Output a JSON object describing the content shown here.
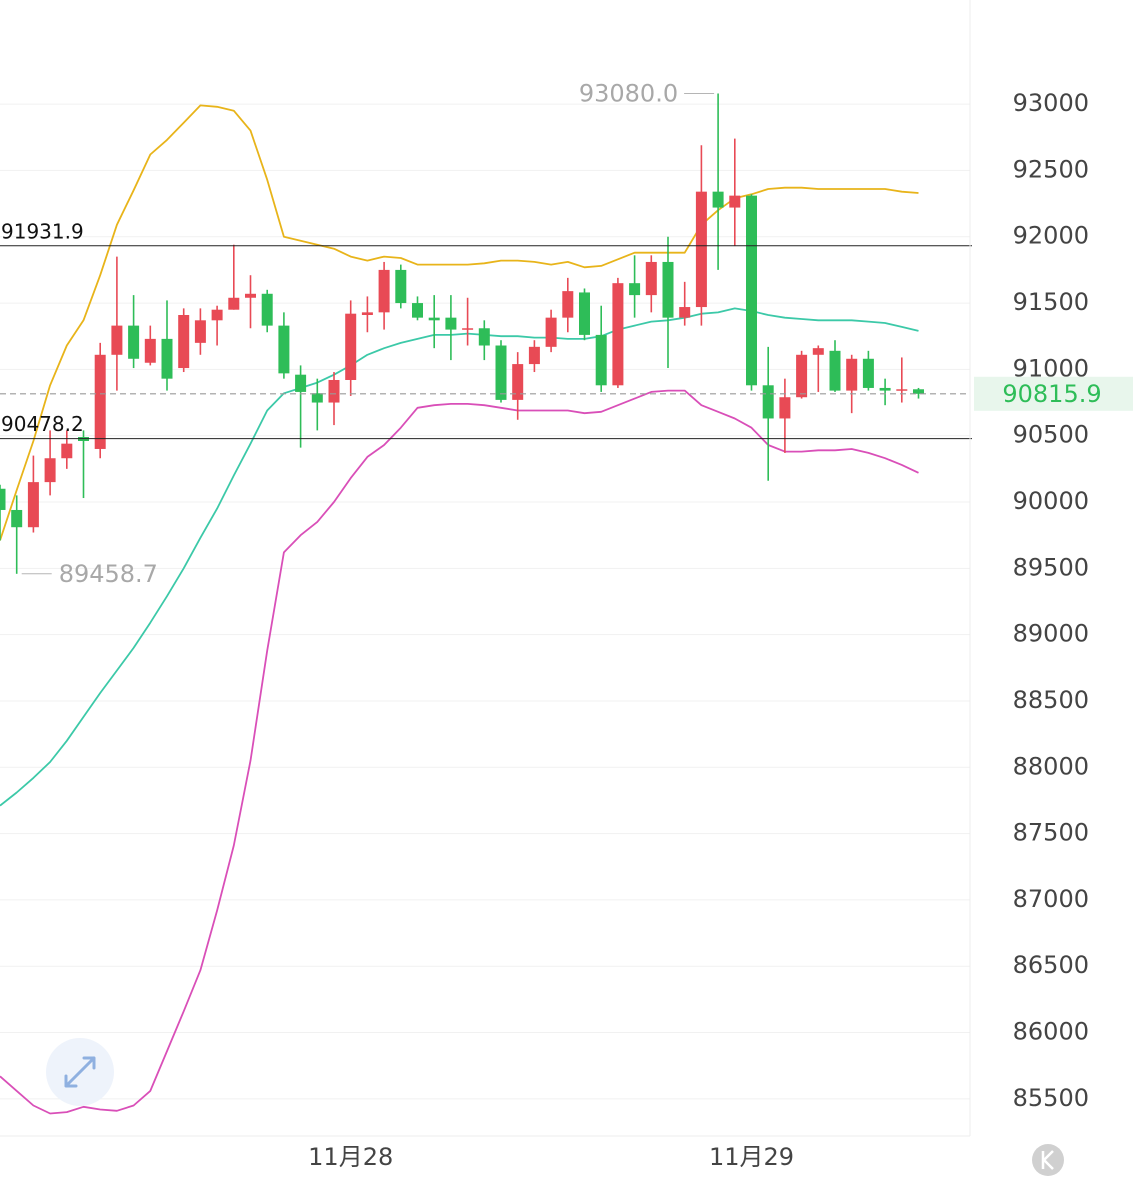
{
  "chart_data": {
    "type": "candlestick",
    "categories": [
      null,
      null,
      null,
      null,
      null,
      null,
      null,
      null,
      null,
      null,
      null,
      null,
      null,
      null,
      null,
      null,
      null,
      null,
      null,
      null,
      null,
      "11月28",
      null,
      null,
      null,
      null,
      null,
      null,
      null,
      null,
      null,
      null,
      null,
      null,
      null,
      null,
      null,
      null,
      null,
      null,
      null,
      null,
      null,
      null,
      null,
      "11月29",
      null,
      null,
      null,
      null,
      null,
      null,
      null,
      null,
      null,
      null
    ],
    "open": [
      90100,
      89940,
      89810,
      90150,
      90330,
      90490,
      90400,
      91110,
      91330,
      91050,
      91230,
      91010,
      91200,
      91370,
      91450,
      91540,
      91570,
      91330,
      90960,
      90820,
      90750,
      90920,
      91410,
      91430,
      91750,
      91500,
      91390,
      91390,
      91300,
      91310,
      91180,
      90770,
      91040,
      91170,
      91390,
      91580,
      91260,
      90880,
      91650,
      91560,
      91810,
      91390,
      91470,
      92340,
      92220,
      92310,
      90880,
      90630,
      90790,
      91110,
      91140,
      90840,
      91080,
      90860,
      90840,
      90850
    ],
    "high": [
      90130,
      90050,
      90350,
      90540,
      90540,
      90540,
      91200,
      91850,
      91560,
      91330,
      91520,
      91460,
      91460,
      91480,
      91940,
      91710,
      91600,
      91430,
      91030,
      90930,
      90980,
      91520,
      91550,
      91810,
      91790,
      91550,
      91560,
      91560,
      91540,
      91370,
      91220,
      91130,
      91220,
      91450,
      91690,
      91610,
      91480,
      91690,
      91860,
      91860,
      92000,
      91660,
      92690,
      93080,
      92740,
      92320,
      91170,
      90930,
      91140,
      91180,
      91220,
      91110,
      91140,
      90930,
      91090,
      90860
    ],
    "low": [
      89710,
      89458.7,
      89770,
      90050,
      90250,
      90030,
      90330,
      90840,
      91010,
      91030,
      90840,
      90980,
      91110,
      91180,
      91450,
      91310,
      91280,
      90930,
      90410,
      90540,
      90580,
      90800,
      91280,
      91300,
      91460,
      91370,
      91160,
      91070,
      91180,
      91070,
      90750,
      90620,
      90980,
      91130,
      91280,
      91220,
      90830,
      90860,
      91390,
      91430,
      91010,
      91330,
      91330,
      91750,
      91930,
      90840,
      90160,
      90370,
      90780,
      90830,
      90830,
      90670,
      90840,
      90730,
      90750,
      90780
    ],
    "close": [
      89940,
      89810,
      90150,
      90330,
      90440,
      90460,
      91110,
      91330,
      91080,
      91230,
      90930,
      91410,
      91370,
      91450,
      91540,
      91570,
      91330,
      90970,
      90830,
      90750,
      90920,
      91420,
      91430,
      91750,
      91500,
      91390,
      91370,
      91300,
      91310,
      91180,
      90770,
      91040,
      91170,
      91390,
      91590,
      91260,
      90880,
      91650,
      91560,
      91810,
      91390,
      91470,
      92340,
      92220,
      92310,
      90880,
      90630,
      90790,
      91110,
      91160,
      90840,
      91080,
      90860,
      90840,
      90850,
      90815.9
    ],
    "up_color": "#e84a55",
    "down_color": "#2ebd58",
    "overlays": [
      {
        "color": "#e8b41a",
        "values": [
          89710,
          90090,
          90460,
          90880,
          91180,
          91370,
          91710,
          92090,
          92350,
          92620,
          92730,
          92860,
          92990,
          92980,
          92950,
          92800,
          92430,
          92000,
          91970,
          91940,
          91910,
          91850,
          91820,
          91850,
          91840,
          91790,
          91790,
          91790,
          91790,
          91800,
          91820,
          91820,
          91810,
          91790,
          91810,
          91770,
          91780,
          91830,
          91880,
          91880,
          91880,
          91880,
          92090,
          92200,
          92290,
          92320,
          92360,
          92370,
          92370,
          92360,
          92360,
          92360,
          92360,
          92360,
          92340,
          92330
        ]
      },
      {
        "color": "#3cc9a8",
        "values": [
          87710,
          87810,
          87920,
          88040,
          88200,
          88380,
          88560,
          88730,
          88900,
          89090,
          89290,
          89500,
          89730,
          89950,
          90200,
          90440,
          90690,
          90820,
          90860,
          90900,
          90960,
          91030,
          91110,
          91160,
          91200,
          91230,
          91260,
          91260,
          91270,
          91260,
          91250,
          91250,
          91240,
          91240,
          91230,
          91230,
          91250,
          91300,
          91330,
          91360,
          91370,
          91390,
          91420,
          91430,
          91460,
          91440,
          91410,
          91390,
          91380,
          91370,
          91370,
          91370,
          91360,
          91350,
          91320,
          91290
        ]
      },
      {
        "color": "#d94fb8",
        "values": [
          85670,
          85560,
          85450,
          85390,
          85400,
          85440,
          85420,
          85410,
          85450,
          85560,
          85860,
          86160,
          86470,
          86920,
          87410,
          88050,
          88880,
          89620,
          89750,
          89850,
          90000,
          90180,
          90340,
          90430,
          90560,
          90710,
          90730,
          90740,
          90740,
          90730,
          90710,
          90690,
          90690,
          90690,
          90690,
          90670,
          90680,
          90730,
          90780,
          90830,
          90840,
          90840,
          90730,
          90680,
          90630,
          90560,
          90430,
          90380,
          90380,
          90390,
          90390,
          90400,
          90370,
          90330,
          90280,
          90220
        ]
      }
    ],
    "ylim": [
      85220,
      93785
    ],
    "yticks": [
      85500,
      86000,
      86500,
      87000,
      87500,
      88000,
      88500,
      89000,
      89500,
      90000,
      90500,
      91000,
      91500,
      92000,
      92500,
      93000
    ],
    "grid": true,
    "price_lines": [
      91931.9,
      90478.2
    ],
    "last_price": 90815.9,
    "high_annotation": {
      "value": 93080,
      "label": "93080.0"
    },
    "low_annotation": 89458.7
  }
}
